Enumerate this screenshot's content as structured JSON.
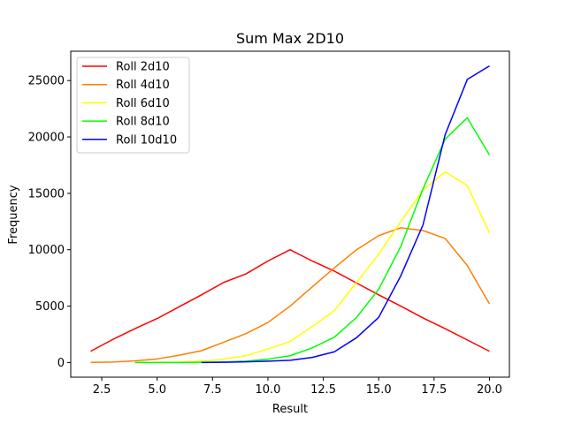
{
  "chart_data": {
    "type": "line",
    "title": "Sum Max 2D10",
    "xlabel": "Result",
    "ylabel": "Frequency",
    "xlim": [
      1.1,
      20.9
    ],
    "ylim": [
      -1300,
      27600
    ],
    "xticks": [
      2.5,
      5.0,
      7.5,
      10.0,
      12.5,
      15.0,
      17.5,
      20.0
    ],
    "xtick_labels": [
      "2.5",
      "5.0",
      "7.5",
      "10.0",
      "12.5",
      "15.0",
      "17.5",
      "20.0"
    ],
    "yticks": [
      0,
      5000,
      10000,
      15000,
      20000,
      25000
    ],
    "ytick_labels": [
      "0",
      "5000",
      "10000",
      "15000",
      "20000",
      "25000"
    ],
    "grid": false,
    "legend_position": "top-left",
    "series": [
      {
        "name": "Roll 2d10",
        "color": "#ff0000",
        "x": [
          2,
          3,
          4,
          5,
          6,
          7,
          8,
          9,
          10,
          11,
          12,
          13,
          14,
          15,
          16,
          17,
          18,
          19,
          20
        ],
        "values": [
          1000,
          2050,
          3000,
          3900,
          4950,
          6000,
          7100,
          7850,
          9000,
          10000,
          9000,
          8100,
          7050,
          6000,
          5000,
          3950,
          3000,
          2000,
          1000
        ]
      },
      {
        "name": "Roll 4d10",
        "color": "#ff7f00",
        "x": [
          2,
          3,
          4,
          5,
          6,
          7,
          8,
          9,
          10,
          11,
          12,
          13,
          14,
          15,
          16,
          17,
          18,
          19,
          20
        ],
        "values": [
          10,
          40,
          150,
          320,
          650,
          1050,
          1800,
          2550,
          3550,
          5000,
          6700,
          8400,
          10000,
          11250,
          11950,
          11700,
          11000,
          8600,
          5200
        ]
      },
      {
        "name": "Roll 6d10",
        "color": "#ffff00",
        "x": [
          4,
          5,
          6,
          7,
          8,
          9,
          10,
          11,
          12,
          13,
          14,
          15,
          16,
          17,
          18,
          19,
          20
        ],
        "values": [
          0,
          10,
          40,
          120,
          300,
          600,
          1200,
          1850,
          3200,
          4600,
          7100,
          9600,
          12500,
          15300,
          16900,
          15700,
          11500
        ]
      },
      {
        "name": "Roll 8d10",
        "color": "#00ff00",
        "x": [
          4,
          5,
          6,
          7,
          8,
          9,
          10,
          11,
          12,
          13,
          14,
          15,
          16,
          17,
          18,
          19,
          20
        ],
        "values": [
          0,
          0,
          0,
          20,
          50,
          120,
          300,
          600,
          1300,
          2250,
          4000,
          6500,
          10300,
          15400,
          19800,
          21700,
          18400
        ]
      },
      {
        "name": "Roll 10d10",
        "color": "#0000ff",
        "x": [
          7,
          8,
          9,
          10,
          11,
          12,
          13,
          14,
          15,
          16,
          17,
          18,
          19,
          20
        ],
        "values": [
          0,
          20,
          60,
          120,
          200,
          450,
          950,
          2200,
          4000,
          7700,
          12200,
          20200,
          25100,
          26300
        ]
      }
    ]
  }
}
